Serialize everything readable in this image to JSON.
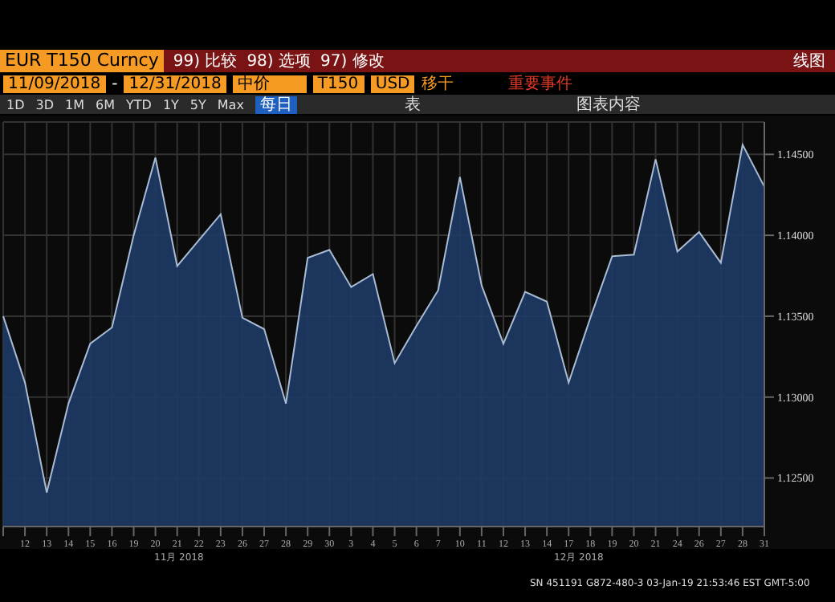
{
  "chart_data": {
    "type": "area",
    "title": "EUR T150 Curncy",
    "categories": [
      null,
      "12",
      "13",
      "14",
      "15",
      "16",
      "19",
      "20",
      "21",
      "22",
      "23",
      "26",
      "27",
      "28",
      "29",
      "30",
      "3",
      "4",
      "5",
      "6",
      "7",
      "10",
      "11",
      "12",
      "13",
      "14",
      "17",
      "18",
      "19",
      "20",
      "21",
      "24",
      "26",
      "27",
      "28",
      "31"
    ],
    "series": [
      {
        "color": "#1d3a66",
        "values": [
          1.135,
          1.1309,
          1.1241,
          1.1296,
          1.1333,
          1.1343,
          1.14,
          1.1448,
          1.1381,
          1.1397,
          1.1413,
          1.1349,
          1.1342,
          1.1296,
          1.1386,
          1.1391,
          1.1368,
          1.1376,
          1.1321,
          1.1344,
          1.1366,
          1.1436,
          1.1369,
          1.1333,
          1.1365,
          1.1359,
          1.1309,
          1.1349,
          1.1387,
          1.1388,
          1.1447,
          1.139,
          1.1402,
          1.1383,
          1.1456,
          1.143
        ]
      }
    ],
    "ylim": [
      1.122,
      1.147
    ],
    "yticks": [
      {
        "value": 1.125,
        "label": "1.12500"
      },
      {
        "value": 1.13,
        "label": "1.13000"
      },
      {
        "value": 1.135,
        "label": "1.13500"
      },
      {
        "value": 1.14,
        "label": "1.14000"
      },
      {
        "value": 1.145,
        "label": "1.14500"
      }
    ],
    "grid": true,
    "annotations": [
      "99) 比较",
      "98) 选项",
      "97) 修改",
      "线图",
      "11/09/2018",
      "-",
      "12/31/2018",
      "中价",
      "T150",
      "USD",
      "移干",
      "重要事件",
      "1D",
      "3D",
      "1M",
      "6M",
      "YTD",
      "1Y",
      "5Y",
      "Max",
      "每日",
      "表",
      "图表内容",
      "11月 2018",
      "12月 2018",
      "SN 451191 G872-480-3 03-Jan-19 21:53:46 EST GMT-5:00"
    ]
  }
}
